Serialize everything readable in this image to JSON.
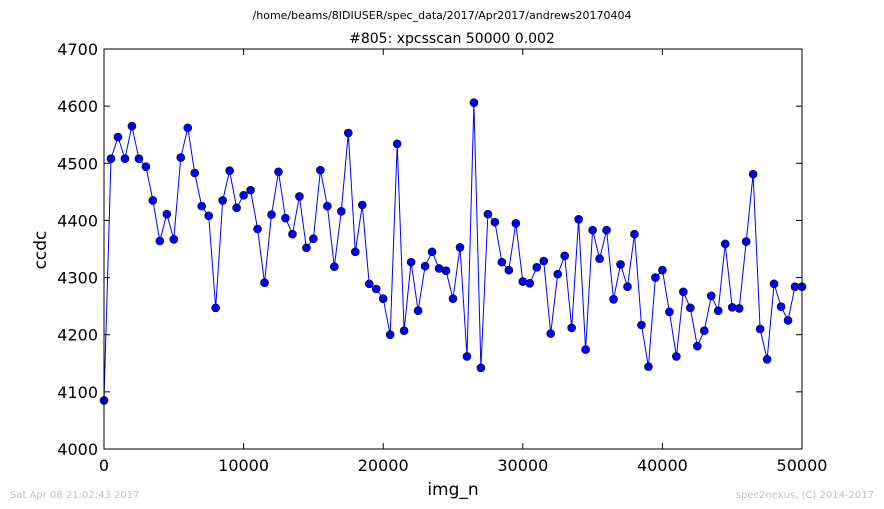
{
  "header": {
    "path": "/home/beams/8IDIUSER/spec_data/2017/Apr2017/andrews20170404"
  },
  "footer": {
    "timestamp": "Sat Apr 08 21:02:43 2017",
    "credit": "spec2nexus, (C) 2014-2017"
  },
  "chart_data": {
    "type": "line",
    "title": "#805: xpcsscan 50000 0.002",
    "xlabel": "img_n",
    "ylabel": "ccdc",
    "xlim": [
      0,
      50000
    ],
    "ylim": [
      4000,
      4700
    ],
    "xticks": [
      0,
      10000,
      20000,
      30000,
      40000,
      50000
    ],
    "yticks": [
      4000,
      4100,
      4200,
      4300,
      4400,
      4500,
      4600,
      4700
    ],
    "grid": false,
    "color": "#0000ff",
    "series": [
      {
        "x": [
          0,
          500,
          1000,
          1500,
          2000,
          2500,
          3000,
          3500,
          4000,
          4500,
          5000,
          5500,
          6000,
          6500,
          7000,
          7500,
          8000,
          8500,
          9000,
          9500,
          10000,
          10500,
          11000,
          11500,
          12000,
          12500,
          13000,
          13500,
          14000,
          14500,
          15000,
          15500,
          16000,
          16500,
          17000,
          17500,
          18000,
          18500,
          19000,
          19500,
          20000,
          20500,
          21000,
          21500,
          22000,
          22500,
          23000,
          23500,
          24000,
          24500,
          25000,
          25500,
          26000,
          26500,
          27000,
          27500,
          28000,
          28500,
          29000,
          29500,
          30000,
          30500,
          31000,
          31500,
          32000,
          32500,
          33000,
          33500,
          34000,
          34500,
          35000,
          35500,
          36000,
          36500,
          37000,
          37500,
          38000,
          38500,
          39000,
          39500,
          40000,
          40500,
          41000,
          41500,
          42000,
          42500,
          43000,
          43500,
          44000,
          44500,
          45000,
          45500,
          46000,
          46500,
          47000,
          47500,
          48000,
          48500,
          49000,
          49500,
          50000
        ],
        "y": [
          4085,
          4508,
          4546,
          4508,
          4565,
          4508,
          4494,
          4435,
          4364,
          4411,
          4367,
          4510,
          4562,
          4483,
          4425,
          4408,
          4247,
          4435,
          4487,
          4422,
          4444,
          4453,
          4385,
          4291,
          4410,
          4485,
          4404,
          4376,
          4442,
          4352,
          4368,
          4488,
          4425,
          4319,
          4416,
          4553,
          4345,
          4427,
          4289,
          4280,
          4263,
          4200,
          4534,
          4207,
          4327,
          4242,
          4320,
          4345,
          4316,
          4312,
          4263,
          4353,
          4162,
          4606,
          4142,
          4411,
          4397,
          4327,
          4313,
          4395,
          4293,
          4290,
          4318,
          4329,
          4202,
          4306,
          4338,
          4212,
          4402,
          4174,
          4383,
          4333,
          4383,
          4262,
          4323,
          4284,
          4376,
          4217,
          4144,
          4300,
          4313,
          4240,
          4162,
          4275,
          4247,
          4180,
          4207,
          4268,
          4242,
          4359,
          4248,
          4246,
          4363,
          4481,
          4210,
          4157,
          4289,
          4249,
          4225,
          4284,
          4284
        ]
      }
    ]
  }
}
